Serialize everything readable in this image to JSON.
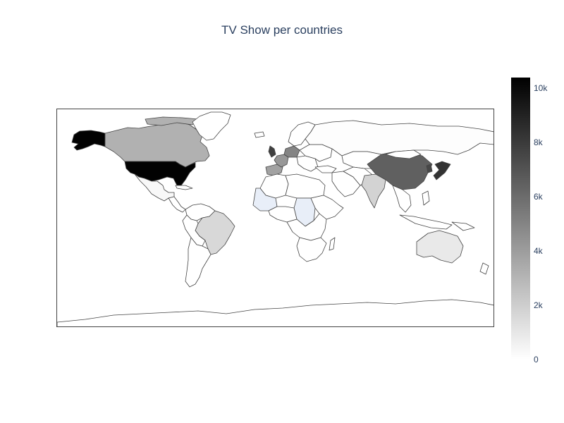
{
  "title": "TV Show per countries",
  "map": {
    "projection": "equirectangular",
    "border_color": "#444444",
    "land_default_color": "#ffffff"
  },
  "colorscale": {
    "stops": [
      "#ffffff",
      "#000000"
    ],
    "range": [
      0,
      10400
    ],
    "ticks": [
      {
        "value": 0,
        "label": "0"
      },
      {
        "value": 2000,
        "label": "2k"
      },
      {
        "value": 4000,
        "label": "4k"
      },
      {
        "value": 6000,
        "label": "6k"
      },
      {
        "value": 8000,
        "label": "8k"
      },
      {
        "value": 10000,
        "label": "10k"
      }
    ]
  },
  "chart_data": {
    "type": "choropleth",
    "title": "TV Show per countries",
    "colorbar_range": [
      0,
      10400
    ],
    "locations": [
      {
        "name": "United States",
        "value": 10300
      },
      {
        "name": "China",
        "value": 6500
      },
      {
        "name": "Japan",
        "value": 8300
      },
      {
        "name": "United Kingdom",
        "value": 7800
      },
      {
        "name": "Germany",
        "value": 5000
      },
      {
        "name": "France",
        "value": 4200
      },
      {
        "name": "Spain",
        "value": 3800
      },
      {
        "name": "Canada",
        "value": 3200
      },
      {
        "name": "Korea",
        "value": 7500
      },
      {
        "name": "India",
        "value": 1800
      },
      {
        "name": "Brazil",
        "value": 1600
      },
      {
        "name": "Australia",
        "value": 900
      },
      {
        "name": "Mexico",
        "value": 300
      },
      {
        "name": "Russia",
        "value": 100
      }
    ]
  }
}
